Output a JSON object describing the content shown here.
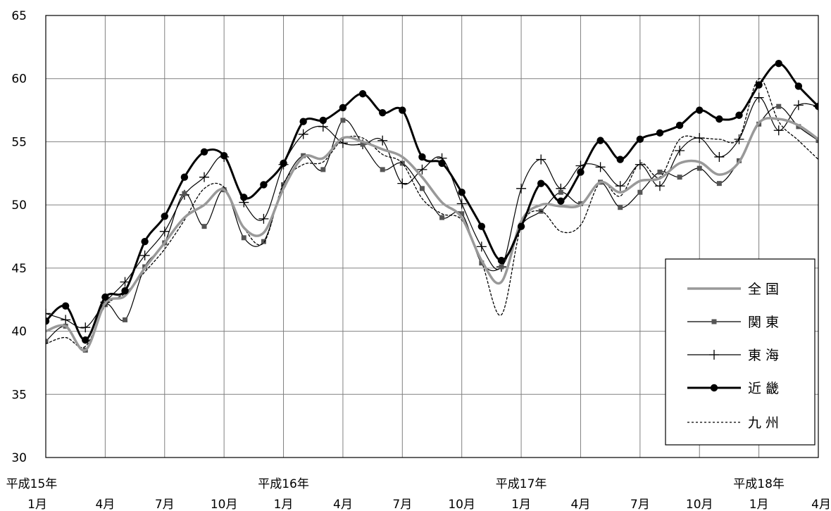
{
  "chart_data": {
    "type": "line",
    "title": "",
    "xlabel": "",
    "ylabel": "",
    "ylim": [
      30,
      65
    ],
    "y_ticks": [
      30,
      35,
      40,
      45,
      50,
      55,
      60,
      65
    ],
    "grid": true,
    "legend_position": "bottom-right",
    "x_labels": [
      {
        "year": "平成15年",
        "month": "1月"
      },
      {
        "year": "",
        "month": "4月"
      },
      {
        "year": "",
        "month": "7月"
      },
      {
        "year": "",
        "month": "10月"
      },
      {
        "year": "平成16年",
        "month": "1月"
      },
      {
        "year": "",
        "month": "4月"
      },
      {
        "year": "",
        "month": "7月"
      },
      {
        "year": "",
        "month": "10月"
      },
      {
        "year": "平成17年",
        "month": "1月"
      },
      {
        "year": "",
        "month": "4月"
      },
      {
        "year": "",
        "month": "7月"
      },
      {
        "year": "",
        "month": "10月"
      },
      {
        "year": "平成18年",
        "month": "1月"
      },
      {
        "year": "",
        "month": "4月"
      }
    ],
    "x": [
      "H15-1",
      "H15-2",
      "H15-3",
      "H15-4",
      "H15-5",
      "H15-6",
      "H15-7",
      "H15-8",
      "H15-9",
      "H15-10",
      "H15-11",
      "H15-12",
      "H16-1",
      "H16-2",
      "H16-3",
      "H16-4",
      "H16-5",
      "H16-6",
      "H16-7",
      "H16-8",
      "H16-9",
      "H16-10",
      "H16-11",
      "H16-12",
      "H17-1",
      "H17-2",
      "H17-3",
      "H17-4",
      "H17-5",
      "H17-6",
      "H17-7",
      "H17-8",
      "H17-9",
      "H17-10",
      "H17-11",
      "H17-12",
      "H18-1",
      "H18-2",
      "H18-3",
      "H18-4"
    ],
    "series": [
      {
        "name": "全 国",
        "style": "thick-gray",
        "color": "#999999",
        "values": [
          40.0,
          40.4,
          38.5,
          42.2,
          42.8,
          45.0,
          47.0,
          49.0,
          50.0,
          51.2,
          48.2,
          47.8,
          51.3,
          53.8,
          53.7,
          55.3,
          55.0,
          54.4,
          53.8,
          52.2,
          50.2,
          49.0,
          45.6,
          43.9,
          48.7,
          50.0,
          49.9,
          50.0,
          51.8,
          51.0,
          51.9,
          52.1,
          53.3,
          53.4,
          52.4,
          53.4,
          56.5,
          56.8,
          56.3,
          55.2
        ]
      },
      {
        "name": "関 東",
        "style": "thin-square",
        "color": "#000000",
        "values": [
          39.2,
          40.4,
          38.5,
          42.1,
          40.9,
          45.1,
          47.0,
          50.9,
          48.3,
          51.2,
          47.4,
          47.1,
          51.6,
          53.9,
          52.8,
          56.7,
          54.8,
          52.8,
          53.3,
          51.3,
          49.0,
          49.3,
          45.4,
          45.1,
          48.4,
          49.5,
          51.0,
          50.1,
          51.8,
          49.8,
          51.0,
          52.6,
          52.2,
          52.9,
          51.7,
          53.5,
          56.4,
          57.8,
          56.2,
          55.1
        ]
      },
      {
        "name": "東 海",
        "style": "thin-plus",
        "color": "#000000",
        "values": [
          41.4,
          40.9,
          40.3,
          42.3,
          43.9,
          46.0,
          47.9,
          50.8,
          52.2,
          53.8,
          50.2,
          48.9,
          53.2,
          55.6,
          56.2,
          54.9,
          54.8,
          55.1,
          51.7,
          52.8,
          53.7,
          50.1,
          46.7,
          45.1,
          51.3,
          53.6,
          51.3,
          53.1,
          53.0,
          51.5,
          53.2,
          51.5,
          54.3,
          55.3,
          53.8,
          55.2,
          58.5,
          55.9,
          57.9,
          57.8
        ]
      },
      {
        "name": "近 畿",
        "style": "thick-circle",
        "color": "#000000",
        "values": [
          40.8,
          42.0,
          39.3,
          42.7,
          43.2,
          47.1,
          49.1,
          52.2,
          54.2,
          53.9,
          50.6,
          51.6,
          53.3,
          56.6,
          56.7,
          57.7,
          58.8,
          57.3,
          57.5,
          53.8,
          53.3,
          51.0,
          48.3,
          45.6,
          48.3,
          51.7,
          50.3,
          52.6,
          55.1,
          53.6,
          55.2,
          55.7,
          56.3,
          57.5,
          56.8,
          57.1,
          59.5,
          61.2,
          59.4,
          57.8
        ]
      },
      {
        "name": "九 州",
        "style": "dotted",
        "color": "#000000",
        "values": [
          39.0,
          39.5,
          38.8,
          42.0,
          43.0,
          44.7,
          46.5,
          48.8,
          51.3,
          51.4,
          48.2,
          47.0,
          51.7,
          53.2,
          53.4,
          55.2,
          55.3,
          54.0,
          53.3,
          50.5,
          49.3,
          48.8,
          45.5,
          41.3,
          48.3,
          49.5,
          47.9,
          48.4,
          51.8,
          50.7,
          53.3,
          52.2,
          55.2,
          55.3,
          55.2,
          55.3,
          60.0,
          56.6,
          55.1,
          53.6
        ]
      }
    ]
  }
}
